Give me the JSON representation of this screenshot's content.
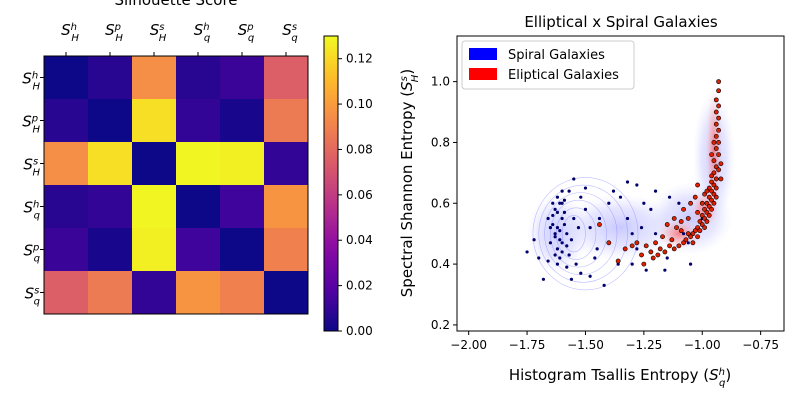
{
  "chart_data": [
    {
      "type": "heatmap",
      "title": "Silhouette Score",
      "row_labels": [
        {
          "base": "S",
          "sub": "H",
          "sup": "h"
        },
        {
          "base": "S",
          "sub": "H",
          "sup": "p"
        },
        {
          "base": "S",
          "sub": "H",
          "sup": "s"
        },
        {
          "base": "S",
          "sub": "q",
          "sup": "h"
        },
        {
          "base": "S",
          "sub": "q",
          "sup": "p"
        },
        {
          "base": "S",
          "sub": "q",
          "sup": "s"
        }
      ],
      "col_labels": [
        {
          "base": "S",
          "sub": "H",
          "sup": "h"
        },
        {
          "base": "S",
          "sub": "H",
          "sup": "p"
        },
        {
          "base": "S",
          "sub": "H",
          "sup": "s"
        },
        {
          "base": "S",
          "sub": "q",
          "sup": "h"
        },
        {
          "base": "S",
          "sub": "q",
          "sup": "p"
        },
        {
          "base": "S",
          "sub": "q",
          "sup": "s"
        }
      ],
      "values": [
        [
          0.0,
          0.007,
          0.095,
          0.007,
          0.012,
          0.075
        ],
        [
          0.007,
          0.0,
          0.122,
          0.01,
          0.003,
          0.087
        ],
        [
          0.095,
          0.122,
          0.0,
          0.129,
          0.127,
          0.01
        ],
        [
          0.007,
          0.01,
          0.129,
          0.0,
          0.013,
          0.097
        ],
        [
          0.012,
          0.003,
          0.127,
          0.013,
          0.0,
          0.09
        ],
        [
          0.075,
          0.087,
          0.01,
          0.097,
          0.09,
          0.0
        ]
      ],
      "colorbar": {
        "min": 0.0,
        "max": 0.13,
        "ticks": [
          0.0,
          0.02,
          0.04,
          0.06,
          0.08,
          0.1,
          0.12
        ],
        "tick_labels": [
          "0.00",
          "0.02",
          "0.04",
          "0.06",
          "0.08",
          "0.10",
          "0.12"
        ],
        "colormap": "plasma"
      }
    },
    {
      "type": "scatter",
      "title": "Elliptical x Spiral Galaxies",
      "xlabel": {
        "text": "Histogram Tsallis Entropy (",
        "base": "S",
        "sub": "q",
        "sup": "h",
        "close": ")"
      },
      "ylabel": {
        "text": "Spectral Shannon Entropy (",
        "base": "S",
        "sub": "H",
        "sup": "s",
        "close": ")"
      },
      "xlim": [
        -2.05,
        -0.65
      ],
      "ylim": [
        0.18,
        1.15
      ],
      "xticks": [
        -2.0,
        -1.75,
        -1.5,
        -1.25,
        -1.0,
        -0.75
      ],
      "xtick_labels": [
        "−2.00",
        "−1.75",
        "−1.50",
        "−1.25",
        "−1.00",
        "−0.75"
      ],
      "yticks": [
        0.2,
        0.4,
        0.6,
        0.8,
        1.0
      ],
      "ytick_labels": [
        "0.2",
        "0.4",
        "0.6",
        "0.8",
        "1.0"
      ],
      "legend_position": "top-left",
      "series": [
        {
          "name": "Spiral Galaxies",
          "color": "#0000ff",
          "point_color": "#00006e",
          "kde_color": "#6f6fff",
          "points": [
            [
              -1.62,
              0.52
            ],
            [
              -1.6,
              0.55
            ],
            [
              -1.63,
              0.5
            ],
            [
              -1.61,
              0.48
            ],
            [
              -1.59,
              0.57
            ],
            [
              -1.64,
              0.53
            ],
            [
              -1.62,
              0.45
            ],
            [
              -1.6,
              0.6
            ],
            [
              -1.61,
              0.42
            ],
            [
              -1.63,
              0.58
            ],
            [
              -1.58,
              0.5
            ],
            [
              -1.65,
              0.47
            ],
            [
              -1.62,
              0.62
            ],
            [
              -1.6,
              0.44
            ],
            [
              -1.59,
              0.53
            ],
            [
              -1.64,
              0.56
            ],
            [
              -1.61,
              0.51
            ],
            [
              -1.63,
              0.49
            ],
            [
              -1.6,
              0.47
            ],
            [
              -1.62,
              0.57
            ],
            [
              -1.58,
              0.46
            ],
            [
              -1.65,
              0.52
            ],
            [
              -1.61,
              0.6
            ],
            [
              -1.63,
              0.43
            ],
            [
              -1.55,
              0.55
            ],
            [
              -1.53,
              0.52
            ],
            [
              -1.57,
              0.64
            ],
            [
              -1.55,
              0.68
            ],
            [
              -1.52,
              0.62
            ],
            [
              -1.5,
              0.58
            ],
            [
              -1.48,
              0.52
            ],
            [
              -1.54,
              0.4
            ],
            [
              -1.56,
              0.35
            ],
            [
              -1.52,
              0.37
            ],
            [
              -1.46,
              0.42
            ],
            [
              -1.44,
              0.55
            ],
            [
              -1.4,
              0.6
            ],
            [
              -1.38,
              0.64
            ],
            [
              -1.35,
              0.62
            ],
            [
              -1.32,
              0.55
            ],
            [
              -1.3,
              0.5
            ],
            [
              -1.28,
              0.45
            ],
            [
              -1.25,
              0.6
            ],
            [
              -1.22,
              0.58
            ],
            [
              -1.2,
              0.5
            ],
            [
              -1.18,
              0.45
            ],
            [
              -1.15,
              0.42
            ],
            [
              -1.12,
              0.55
            ],
            [
              -1.1,
              0.6
            ],
            [
              -1.08,
              0.5
            ],
            [
              -1.06,
              0.47
            ],
            [
              -1.05,
              0.4
            ],
            [
              -1.02,
              0.52
            ],
            [
              -1.0,
              0.55
            ],
            [
              -1.28,
              0.66
            ],
            [
              -1.32,
              0.67
            ],
            [
              -1.42,
              0.33
            ],
            [
              -1.45,
              0.45
            ],
            [
              -1.36,
              0.4
            ],
            [
              -1.24,
              0.38
            ],
            [
              -1.16,
              0.38
            ],
            [
              -1.66,
              0.41
            ],
            [
              -1.68,
              0.35
            ],
            [
              -1.7,
              0.42
            ],
            [
              -1.72,
              0.48
            ],
            [
              -1.75,
              0.44
            ],
            [
              -1.58,
              0.39
            ],
            [
              -1.5,
              0.65
            ],
            [
              -1.2,
              0.64
            ],
            [
              -1.14,
              0.62
            ],
            [
              -1.48,
              0.36
            ],
            [
              -1.3,
              0.4
            ],
            [
              -1.62,
              0.4
            ],
            [
              -1.57,
              0.43
            ],
            [
              -1.59,
              0.61
            ],
            [
              -1.6,
              0.64
            ],
            [
              -1.64,
              0.6
            ],
            [
              -1.66,
              0.55
            ],
            [
              -1.56,
              0.48
            ],
            [
              -1.26,
              0.52
            ]
          ]
        },
        {
          "name": "Eliptical Galaxies",
          "color": "#ff0000",
          "point_color": "#e02000",
          "kde_color": "#ff7070",
          "points": [
            [
              -0.93,
              1.0
            ],
            [
              -0.93,
              0.97
            ],
            [
              -0.94,
              0.94
            ],
            [
              -0.93,
              0.92
            ],
            [
              -0.94,
              0.9
            ],
            [
              -0.93,
              0.88
            ],
            [
              -0.94,
              0.86
            ],
            [
              -0.93,
              0.84
            ],
            [
              -0.94,
              0.82
            ],
            [
              -0.93,
              0.8
            ],
            [
              -0.94,
              0.78
            ],
            [
              -0.93,
              0.76
            ],
            [
              -0.95,
              0.74
            ],
            [
              -0.94,
              0.72
            ],
            [
              -0.93,
              0.71
            ],
            [
              -0.95,
              0.7
            ],
            [
              -0.94,
              0.68
            ],
            [
              -0.96,
              0.67
            ],
            [
              -0.95,
              0.66
            ],
            [
              -0.94,
              0.65
            ],
            [
              -0.96,
              0.64
            ],
            [
              -0.95,
              0.63
            ],
            [
              -0.97,
              0.62
            ],
            [
              -0.94,
              0.62
            ],
            [
              -0.96,
              0.61
            ],
            [
              -0.98,
              0.6
            ],
            [
              -0.95,
              0.6
            ],
            [
              -0.97,
              0.59
            ],
            [
              -0.99,
              0.58
            ],
            [
              -0.96,
              0.58
            ],
            [
              -0.98,
              0.57
            ],
            [
              -1.0,
              0.56
            ],
            [
              -0.97,
              0.56
            ],
            [
              -0.99,
              0.55
            ],
            [
              -1.01,
              0.54
            ],
            [
              -0.98,
              0.54
            ],
            [
              -1.0,
              0.53
            ],
            [
              -1.02,
              0.52
            ],
            [
              -0.99,
              0.52
            ],
            [
              -1.03,
              0.51
            ],
            [
              -1.01,
              0.51
            ],
            [
              -1.04,
              0.5
            ],
            [
              -1.02,
              0.49
            ],
            [
              -1.05,
              0.49
            ],
            [
              -1.07,
              0.48
            ],
            [
              -1.04,
              0.47
            ],
            [
              -1.08,
              0.47
            ],
            [
              -1.1,
              0.46
            ],
            [
              -1.06,
              0.5
            ],
            [
              -1.12,
              0.45
            ],
            [
              -1.14,
              0.46
            ],
            [
              -1.16,
              0.44
            ],
            [
              -1.18,
              0.45
            ],
            [
              -1.2,
              0.47
            ],
            [
              -1.22,
              0.44
            ],
            [
              -1.24,
              0.46
            ],
            [
              -1.26,
              0.43
            ],
            [
              -1.28,
              0.47
            ],
            [
              -1.3,
              0.46
            ],
            [
              -1.15,
              0.53
            ],
            [
              -1.12,
              0.55
            ],
            [
              -1.08,
              0.58
            ],
            [
              -1.05,
              0.6
            ],
            [
              -1.03,
              0.62
            ],
            [
              -0.99,
              0.63
            ],
            [
              -1.17,
              0.49
            ],
            [
              -1.33,
              0.45
            ],
            [
              -1.4,
              0.47
            ],
            [
              -1.44,
              0.53
            ],
            [
              -1.36,
              0.41
            ],
            [
              -1.21,
              0.42
            ],
            [
              -1.11,
              0.52
            ],
            [
              -1.09,
              0.54
            ],
            [
              -0.96,
              0.69
            ],
            [
              -0.95,
              0.8
            ],
            [
              -0.96,
              0.76
            ],
            [
              -0.92,
              0.73
            ],
            [
              -0.92,
              0.68
            ],
            [
              -0.97,
              0.65
            ],
            [
              -1.02,
              0.57
            ],
            [
              -1.06,
              0.55
            ],
            [
              -1.09,
              0.51
            ],
            [
              -1.13,
              0.48
            ],
            [
              -1.19,
              0.43
            ],
            [
              -1.25,
              0.4
            ],
            [
              -1.02,
              0.66
            ],
            [
              -1.0,
              0.6
            ],
            [
              -0.98,
              0.64
            ]
          ]
        }
      ]
    }
  ]
}
